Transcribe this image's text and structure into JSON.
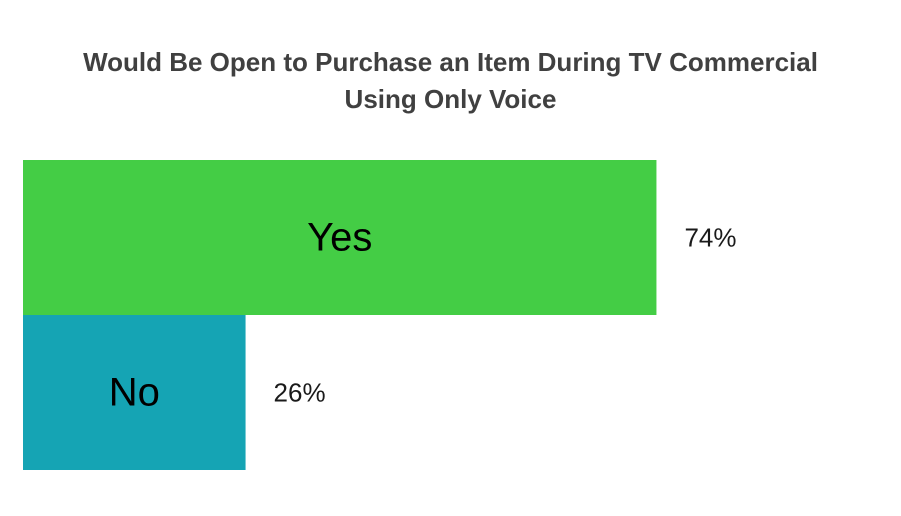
{
  "chart_data": {
    "type": "bar",
    "orientation": "horizontal",
    "title_lines": [
      "Would Be Open to Purchase an Item During TV Commercial",
      "Using Only Voice"
    ],
    "categories": [
      "Yes",
      "No"
    ],
    "values": [
      74,
      26
    ],
    "value_labels": [
      "74%",
      "26%"
    ],
    "colors": [
      "#44cd45",
      "#15a4b4"
    ],
    "xlim": [
      0,
      100
    ],
    "grid": false,
    "legend": "none"
  }
}
